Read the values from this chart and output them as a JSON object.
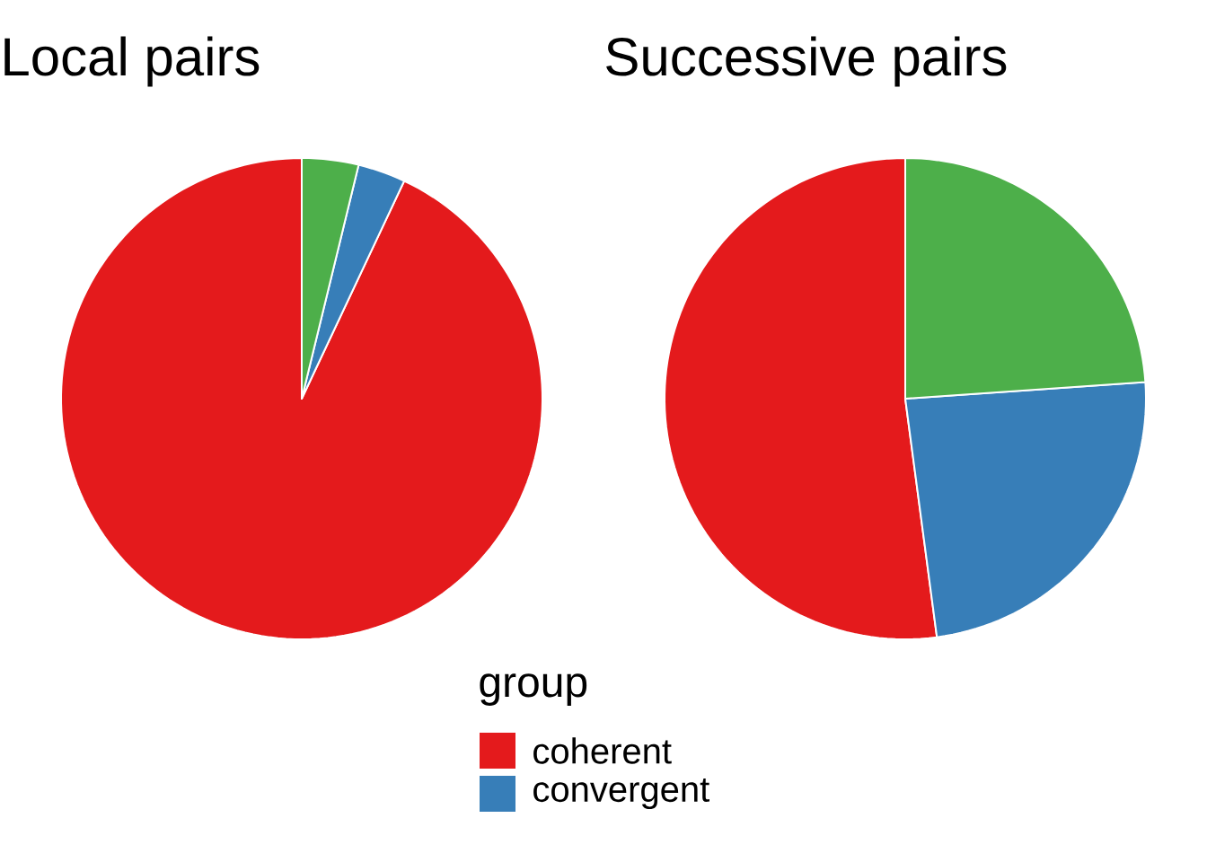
{
  "chart_data": [
    {
      "type": "pie",
      "title": "Local pairs",
      "categories": [
        "coherent",
        "convergent",
        null
      ],
      "values": [
        93.0,
        3.2,
        3.8
      ],
      "colors": [
        "#e41a1c",
        "#377eb8",
        "#4daf4a"
      ],
      "legend": "bottom",
      "legend_title": "group"
    },
    {
      "type": "pie",
      "title": "Successive pairs",
      "categories": [
        null,
        null,
        null
      ],
      "values": [
        52.1,
        24.0,
        23.9
      ],
      "colors": [
        "#e41a1c",
        "#377eb8",
        "#4daf4a"
      ]
    }
  ]
}
